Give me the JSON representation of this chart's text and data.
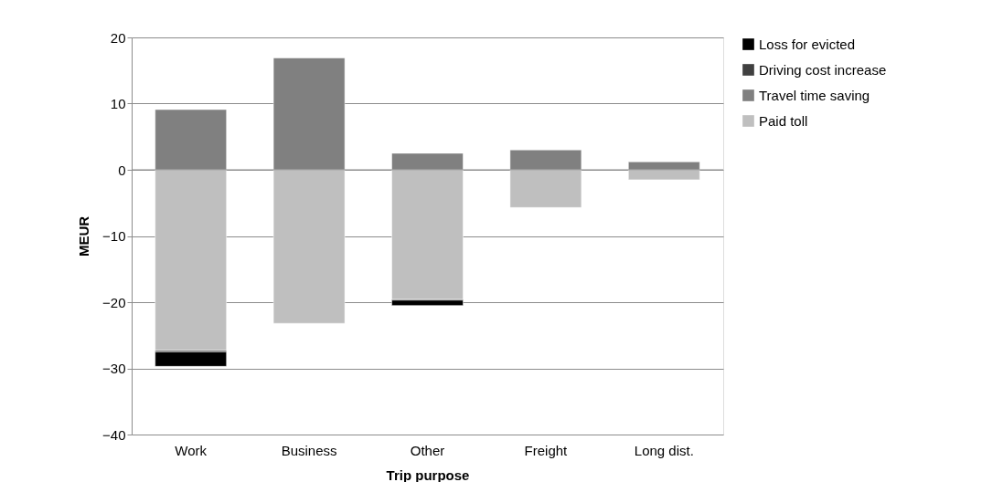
{
  "chart_data": {
    "type": "bar",
    "stacked": true,
    "xlabel": "Trip purpose",
    "ylabel": "MEUR",
    "categories": [
      "Work",
      "Business",
      "Other",
      "Freight",
      "Long dist."
    ],
    "series": [
      {
        "name": "Paid toll",
        "color": "#bfbfbf",
        "values": [
          -27.3,
          -23.2,
          -19.6,
          -5.7,
          -1.5
        ]
      },
      {
        "name": "Travel time saving",
        "color": "#808080",
        "values": [
          9.1,
          16.9,
          2.5,
          3.0,
          1.2
        ]
      },
      {
        "name": "Driving cost increase",
        "color": "#404040",
        "values": [
          -0.2,
          null,
          -0.1,
          null,
          null
        ]
      },
      {
        "name": "Loss for evicted",
        "color": "#000000",
        "values": [
          -2.2,
          0,
          -0.8,
          0,
          0
        ]
      }
    ],
    "ylim": [
      -40,
      20
    ],
    "yticks": [
      -40,
      -30,
      -20,
      -10,
      0,
      10,
      20
    ],
    "grid": "y",
    "legend": "right"
  }
}
